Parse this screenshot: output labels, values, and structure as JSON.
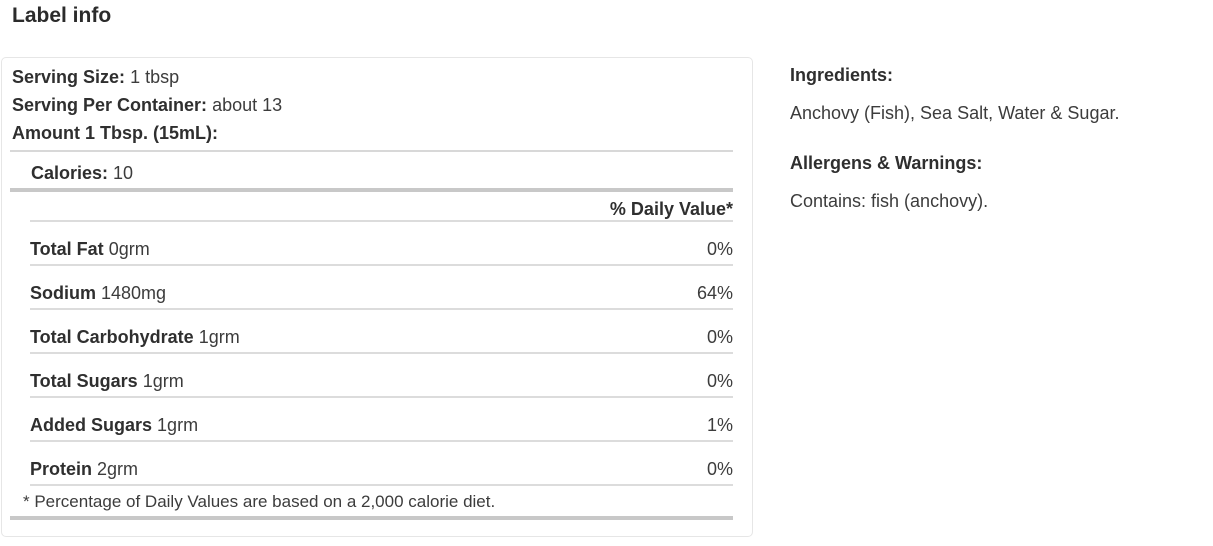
{
  "header": {
    "title": "Label info"
  },
  "nutrition": {
    "serving_size_label": "Serving Size:",
    "serving_size_value": "1 tbsp",
    "serving_per_container_label": "Serving Per Container:",
    "serving_per_container_value": "about 13",
    "amount_label": "Amount 1 Tbsp. (15mL):",
    "calories_label": "Calories:",
    "calories_value": "10",
    "daily_value_header": "% Daily Value*",
    "rows": [
      {
        "name": "Total Fat",
        "amount": "0grm",
        "daily_value": "0%"
      },
      {
        "name": "Sodium",
        "amount": "1480mg",
        "daily_value": "64%"
      },
      {
        "name": "Total Carbohydrate",
        "amount": "1grm",
        "daily_value": "0%"
      },
      {
        "name": "Total Sugars",
        "amount": "1grm",
        "daily_value": "0%"
      },
      {
        "name": "Added Sugars",
        "amount": "1grm",
        "daily_value": "1%"
      },
      {
        "name": "Protein",
        "amount": "2grm",
        "daily_value": "0%"
      }
    ],
    "footnote": "* Percentage of Daily Values are based on a 2,000 calorie diet."
  },
  "ingredients": {
    "heading": "Ingredients:",
    "text": "Anchovy (Fish), Sea Salt, Water & Sugar."
  },
  "allergens": {
    "heading": "Allergens & Warnings:",
    "text": "Contains: fish (anchovy)."
  },
  "colors": {
    "text_bold": "#2f2f2f",
    "text_normal": "#3c3c3c",
    "divider_thin": "#dcdcdc",
    "divider_thick": "#c8c8c8",
    "panel_border": "#e6e6e6",
    "background": "#ffffff"
  }
}
